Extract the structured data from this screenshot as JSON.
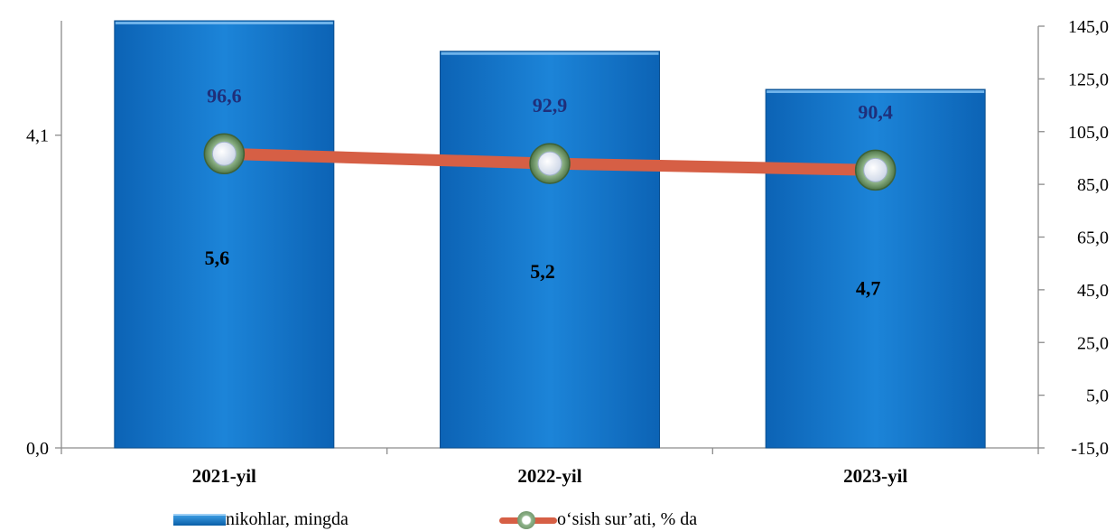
{
  "chart_data": {
    "type": "bar",
    "categories": [
      "2021-yil",
      "2022-yil",
      "2023-yil"
    ],
    "series": [
      {
        "name": "nikohlar, mingda",
        "type": "bar",
        "axis": "left",
        "values": [
          5.6,
          5.2,
          4.7
        ],
        "labels": [
          "5,6",
          "5,2",
          "4,7"
        ],
        "color": "#1273c9"
      },
      {
        "name": "o‘sish sur’ati, % da",
        "type": "line",
        "axis": "right",
        "values": [
          96.6,
          92.9,
          90.4
        ],
        "labels": [
          "96,6",
          "92,9",
          "90,4"
        ],
        "color": "#d65f45",
        "marker_color": "#6b8f63"
      }
    ],
    "y_left": {
      "ylim": [
        0,
        5.6
      ],
      "ticks": [
        0,
        4.1
      ],
      "tick_labels": [
        "0,0",
        "4,1"
      ]
    },
    "y_right": {
      "ylim": [
        -15,
        145
      ],
      "ticks": [
        -15,
        5,
        25,
        45,
        65,
        85,
        105,
        125,
        145
      ],
      "tick_labels": [
        "-15,0",
        "5,0",
        "25,0",
        "45,0",
        "65,0",
        "85,0",
        "105,0",
        "125,0",
        "145,0"
      ]
    },
    "title": "",
    "xlabel": "",
    "ylabel": "",
    "grid": false,
    "legend_position": "bottom"
  },
  "legend": {
    "bar_label": "nikohlar, mingda",
    "line_label": "o‘sish sur’ati, % da"
  }
}
